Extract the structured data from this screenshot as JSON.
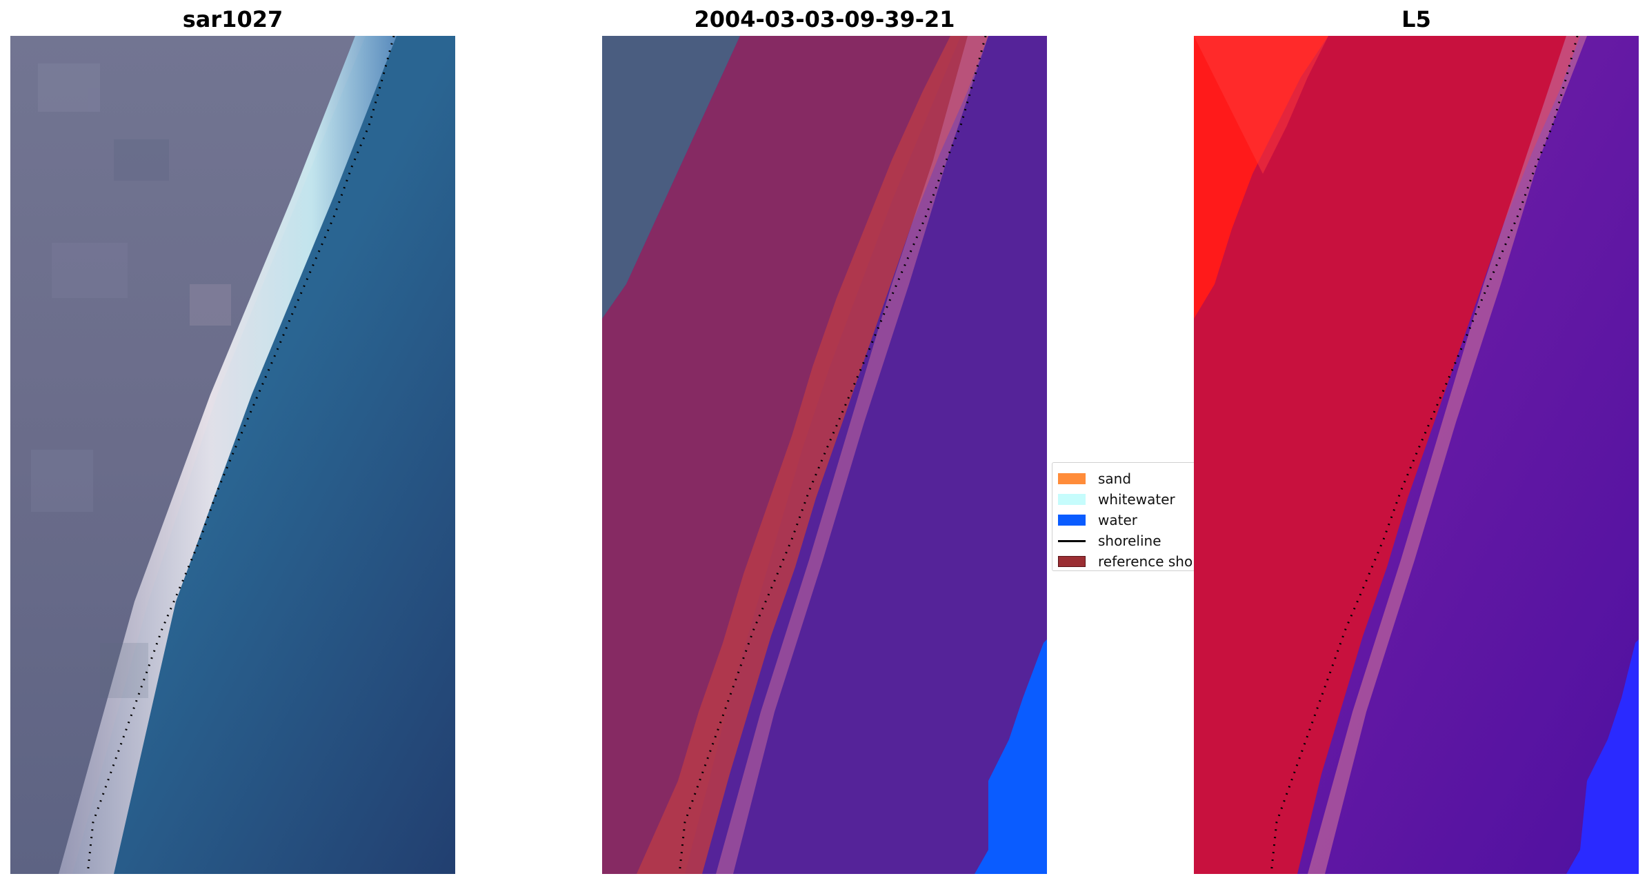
{
  "panels": [
    {
      "id": "rgb",
      "title": "sar1027"
    },
    {
      "id": "classified",
      "title": "2004-03-03-09-39-21"
    },
    {
      "id": "index",
      "title": "L5"
    }
  ],
  "legend": {
    "items": [
      {
        "label": "sand",
        "color": "#ff8c3a",
        "kind": "patch"
      },
      {
        "label": "whitewater",
        "color": "#c6fcfc",
        "kind": "patch"
      },
      {
        "label": "water",
        "color": "#0a5cff",
        "kind": "patch"
      },
      {
        "label": "shoreline",
        "color": "#000000",
        "kind": "line"
      },
      {
        "label": "reference sho",
        "color": "#9b2e33",
        "kind": "patch"
      }
    ]
  },
  "colors": {
    "land_rgb": "#6b6f8c",
    "beach_white": "#e8e8ea",
    "sea_rgb": "#2a5c8e",
    "land_classified": "#862a63",
    "sand_band": "#b4384a",
    "water_classified": "#552399",
    "water_bright": "#0a5cff",
    "index_high": "#ff1a1a",
    "index_land": "#c8113e",
    "index_water": "#5a14a0"
  }
}
